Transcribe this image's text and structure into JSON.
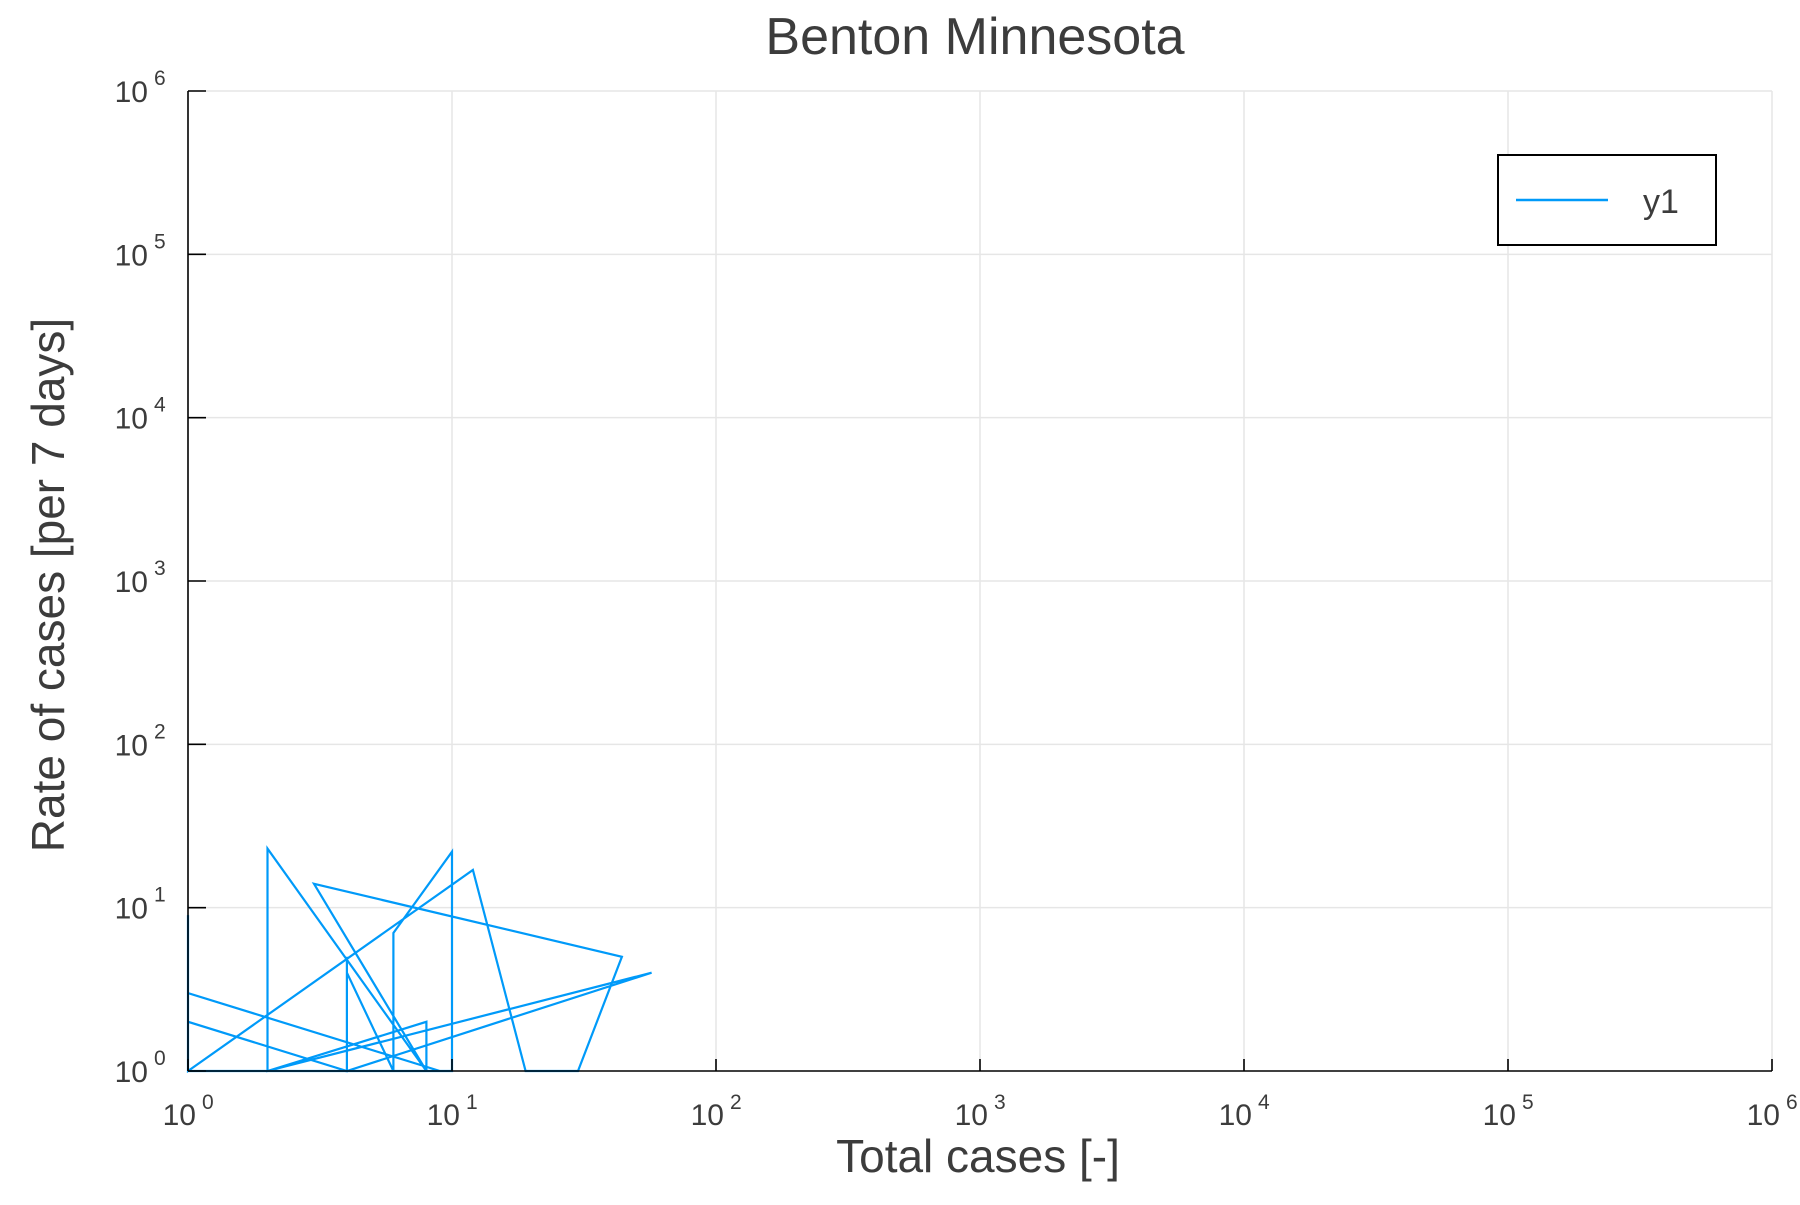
{
  "chart_data": {
    "type": "line",
    "title": "Benton Minnesota",
    "xlabel": "Total cases [-]",
    "ylabel": "Rate of cases [per 7 days]",
    "xscale": "log",
    "yscale": "log",
    "xlim": [
      1,
      1000000
    ],
    "ylim": [
      1,
      1000000
    ],
    "grid": true,
    "legend_position": "top-right",
    "x_ticks": [
      {
        "base": "10",
        "exp": "0"
      },
      {
        "base": "10",
        "exp": "1"
      },
      {
        "base": "10",
        "exp": "2"
      },
      {
        "base": "10",
        "exp": "3"
      },
      {
        "base": "10",
        "exp": "4"
      },
      {
        "base": "10",
        "exp": "5"
      },
      {
        "base": "10",
        "exp": "6"
      }
    ],
    "y_ticks": [
      {
        "base": "10",
        "exp": "0"
      },
      {
        "base": "10",
        "exp": "1"
      },
      {
        "base": "10",
        "exp": "2"
      },
      {
        "base": "10",
        "exp": "3"
      },
      {
        "base": "10",
        "exp": "4"
      },
      {
        "base": "10",
        "exp": "5"
      },
      {
        "base": "10",
        "exp": "6"
      }
    ],
    "series": [
      {
        "name": "y1",
        "color": "#009af9",
        "x": [
          1,
          1,
          1,
          1,
          9,
          9,
          1,
          1,
          8,
          8,
          2,
          2,
          2,
          6,
          6,
          10,
          10,
          10,
          4,
          4,
          4,
          1,
          1,
          12,
          19,
          24,
          30,
          44,
          3,
          8,
          8,
          2,
          2,
          57,
          4,
          4,
          6,
          6
        ],
        "y": [
          1,
          9,
          1,
          1,
          1,
          1,
          3,
          1,
          1,
          2,
          1,
          6,
          1,
          1,
          7,
          22,
          1,
          1,
          1,
          5,
          1,
          2,
          1,
          17,
          1,
          1,
          1,
          5,
          14,
          1,
          1,
          23,
          1,
          4,
          1,
          4,
          1,
          1
        ]
      }
    ]
  }
}
